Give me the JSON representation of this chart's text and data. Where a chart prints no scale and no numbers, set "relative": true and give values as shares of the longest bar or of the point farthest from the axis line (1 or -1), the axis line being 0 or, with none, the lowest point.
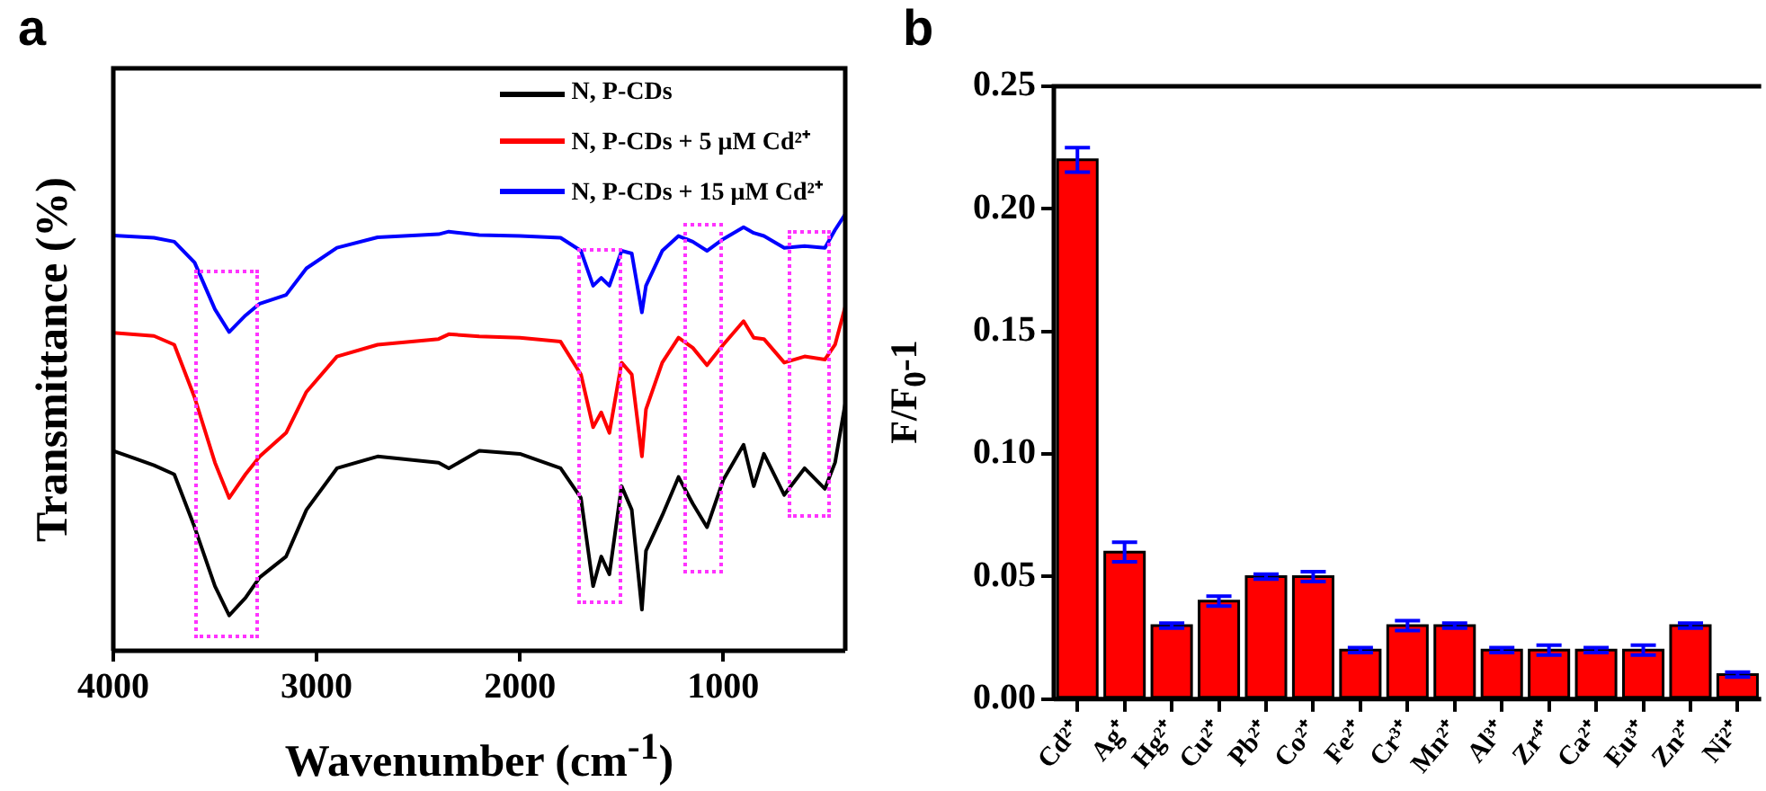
{
  "chart_data": [
    {
      "type": "line",
      "title": "a",
      "xlabel": "Wavenumber (cm$^{-1}$)",
      "ylabel": "Transmittance (%)",
      "relative": true,
      "legend": "top right",
      "marker": "none",
      "line_style": "solid",
      "grid": false,
      "x": [
        4000,
        3800,
        3700,
        3600,
        3500,
        3430,
        3350,
        3280,
        3150,
        3050,
        2900,
        2700,
        2400,
        2350,
        2200,
        2000,
        1800,
        1700,
        1640,
        1600,
        1560,
        1500,
        1450,
        1400,
        1380,
        1300,
        1220,
        1150,
        1080,
        1000,
        900,
        850,
        800,
        700,
        600,
        500,
        450,
        400
      ],
      "xlim": [
        4000,
        400
      ],
      "xticks": [
        4000,
        3000,
        2000,
        1000
      ],
      "series": [
        {
          "name": "N, P-CDs",
          "color": "#000000",
          "values": [
            0.458,
            0.425,
            0.404,
            0.283,
            0.148,
            0.081,
            0.121,
            0.168,
            0.216,
            0.323,
            0.418,
            0.445,
            0.431,
            0.418,
            0.458,
            0.451,
            0.418,
            0.35,
            0.148,
            0.216,
            0.175,
            0.377,
            0.323,
            0.094,
            0.229,
            0.31,
            0.398,
            0.337,
            0.283,
            0.391,
            0.472,
            0.377,
            0.451,
            0.357,
            0.418,
            0.371,
            0.431,
            0.566
          ]
        },
        {
          "name": "N, P-CDs + 5 μM Cd²⁺",
          "color": "#ff0000",
          "values": [
            0.728,
            0.721,
            0.701,
            0.58,
            0.431,
            0.35,
            0.404,
            0.445,
            0.499,
            0.593,
            0.674,
            0.701,
            0.714,
            0.725,
            0.72,
            0.717,
            0.708,
            0.633,
            0.512,
            0.546,
            0.499,
            0.66,
            0.633,
            0.445,
            0.553,
            0.66,
            0.717,
            0.694,
            0.654,
            0.701,
            0.755,
            0.717,
            0.714,
            0.66,
            0.674,
            0.667,
            0.701,
            0.788
          ]
        },
        {
          "name": "N, P-CDs + 15 μM Cd²⁺",
          "color": "#0000ff",
          "values": [
            0.951,
            0.946,
            0.937,
            0.889,
            0.782,
            0.73,
            0.768,
            0.795,
            0.815,
            0.876,
            0.923,
            0.947,
            0.954,
            0.96,
            0.952,
            0.95,
            0.946,
            0.916,
            0.836,
            0.854,
            0.836,
            0.916,
            0.91,
            0.775,
            0.836,
            0.916,
            0.95,
            0.937,
            0.916,
            0.943,
            0.97,
            0.957,
            0.95,
            0.923,
            0.927,
            0.923,
            0.964,
            1.0
          ]
        }
      ]
    },
    {
      "type": "bar",
      "title": "b",
      "ylabel": "F/F$_{0}$-1",
      "grid": false,
      "categories": [
        "Cd²⁺",
        "Ag⁺",
        "Hg²⁺",
        "Cu²⁺",
        "Pb²⁺",
        "Co²⁺",
        "Fe²⁺",
        "Cr³⁺",
        "Mn²⁺",
        "Al³⁺",
        "Zr⁴⁺",
        "Ca²⁺",
        "Eu³⁺",
        "Zn²⁺",
        "Ni²⁺"
      ],
      "values": [
        0.22,
        0.06,
        0.03,
        0.04,
        0.05,
        0.05,
        0.02,
        0.03,
        0.03,
        0.02,
        0.02,
        0.02,
        0.02,
        0.03,
        0.01
      ],
      "errors": [
        0.005,
        0.004,
        0.001,
        0.002,
        0.001,
        0.002,
        0.001,
        0.002,
        0.001,
        0.001,
        0.002,
        0.001,
        0.002,
        0.001,
        0.001
      ],
      "color": "#ff0000",
      "ylim": [
        0,
        0.25
      ],
      "yticks": [
        {
          "value": 0,
          "label": "0.00"
        },
        {
          "value": 0.05,
          "label": "0.05"
        },
        {
          "value": 0.1,
          "label": "0.10"
        },
        {
          "value": 0.15,
          "label": "0.15"
        },
        {
          "value": 0.2,
          "label": "0.20"
        },
        {
          "value": 0.25,
          "label": "0.25"
        }
      ]
    }
  ]
}
